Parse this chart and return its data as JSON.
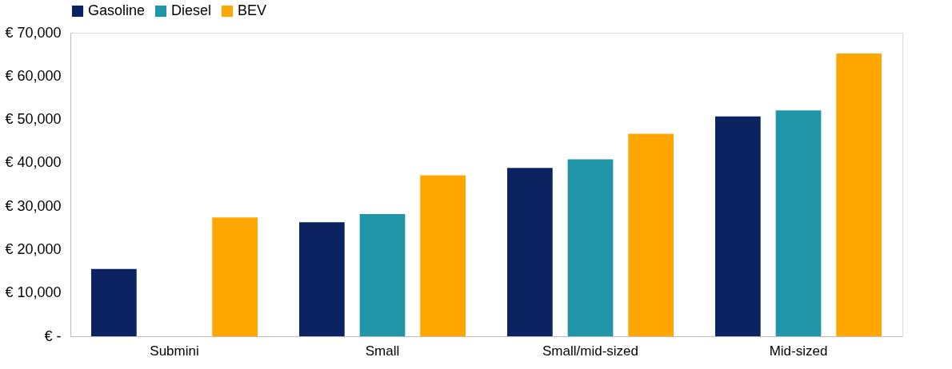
{
  "chart_data": {
    "type": "bar",
    "categories": [
      "Submini",
      "Small",
      "Small/mid-sized",
      "Mid-sized"
    ],
    "series": [
      {
        "name": "Gasoline",
        "color": "#0b2361",
        "values": [
          15500,
          26300,
          38800,
          50700
        ]
      },
      {
        "name": "Diesel",
        "color": "#2196a8",
        "values": [
          null,
          28200,
          40800,
          52100
        ]
      },
      {
        "name": "BEV",
        "color": "#ffa600",
        "values": [
          27400,
          37100,
          46700,
          65200
        ]
      }
    ],
    "ylim": [
      0,
      70000
    ],
    "yticks": [
      {
        "value": 0,
        "label": "€ -"
      },
      {
        "value": 10000,
        "label": "€ 10,000"
      },
      {
        "value": 20000,
        "label": "€ 20,000"
      },
      {
        "value": 30000,
        "label": "€ 30,000"
      },
      {
        "value": 40000,
        "label": "€ 40,000"
      },
      {
        "value": 50000,
        "label": "€ 50,000"
      },
      {
        "value": 60000,
        "label": "€ 60,000"
      },
      {
        "value": 70000,
        "label": "€ 70,000"
      }
    ],
    "grid": false,
    "legend": "top"
  }
}
